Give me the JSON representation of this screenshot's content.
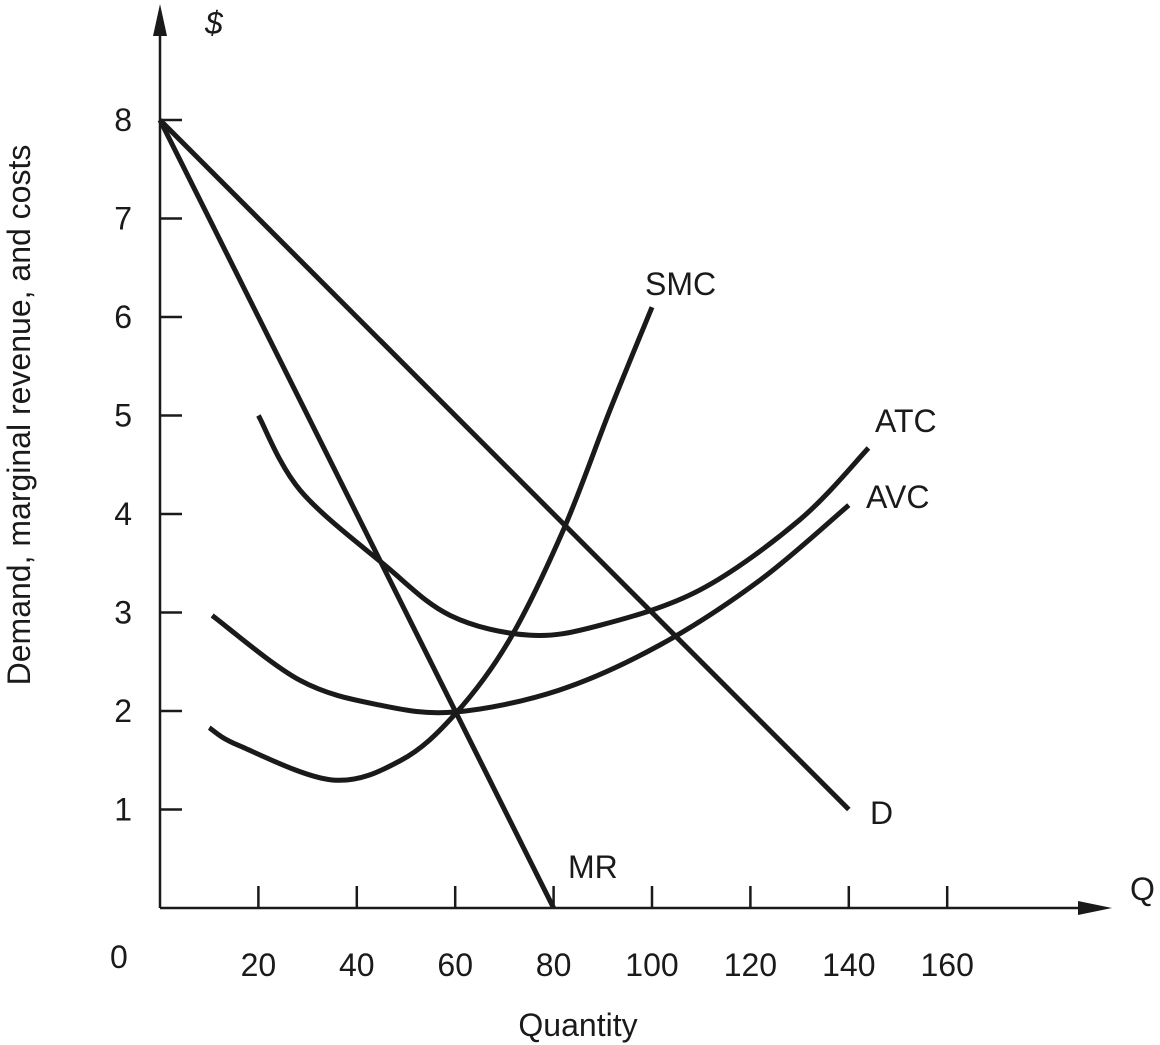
{
  "chart_data": {
    "type": "line",
    "title": "",
    "xlabel": "Quantity",
    "ylabel": "Demand, marginal revenue, and costs",
    "x_axis_symbol": "Q",
    "y_axis_symbol": "$",
    "origin_label": "0",
    "xlim": [
      0,
      180
    ],
    "ylim": [
      0,
      8.8
    ],
    "x_ticks": [
      20,
      40,
      60,
      80,
      100,
      120,
      140,
      160
    ],
    "y_ticks": [
      1,
      2,
      3,
      4,
      5,
      6,
      7,
      8
    ],
    "grid": false,
    "series": [
      {
        "name": "D",
        "x": [
          0,
          140
        ],
        "y": [
          8,
          1
        ]
      },
      {
        "name": "MR",
        "x": [
          0,
          80
        ],
        "y": [
          8,
          0
        ]
      },
      {
        "name": "SMC",
        "x": [
          10,
          16,
          35,
          49,
          60,
          71,
          82,
          91.5,
          100
        ],
        "y": [
          1.83,
          1.65,
          1.3,
          1.5,
          1.97,
          2.72,
          3.84,
          5.06,
          6.1
        ]
      },
      {
        "name": "ATC",
        "x": [
          20,
          28.5,
          45.7,
          59,
          75,
          89.4,
          109.8,
          130,
          144
        ],
        "y": [
          5,
          4.24,
          3.48,
          2.97,
          2.77,
          2.87,
          3.23,
          3.94,
          4.67
        ]
      },
      {
        "name": "AVC",
        "x": [
          10.6,
          28.5,
          44.7,
          60,
          81,
          101.6,
          122,
          140
        ],
        "y": [
          2.97,
          2.31,
          2.06,
          1.99,
          2.21,
          2.67,
          3.33,
          4.09
        ]
      }
    ]
  }
}
